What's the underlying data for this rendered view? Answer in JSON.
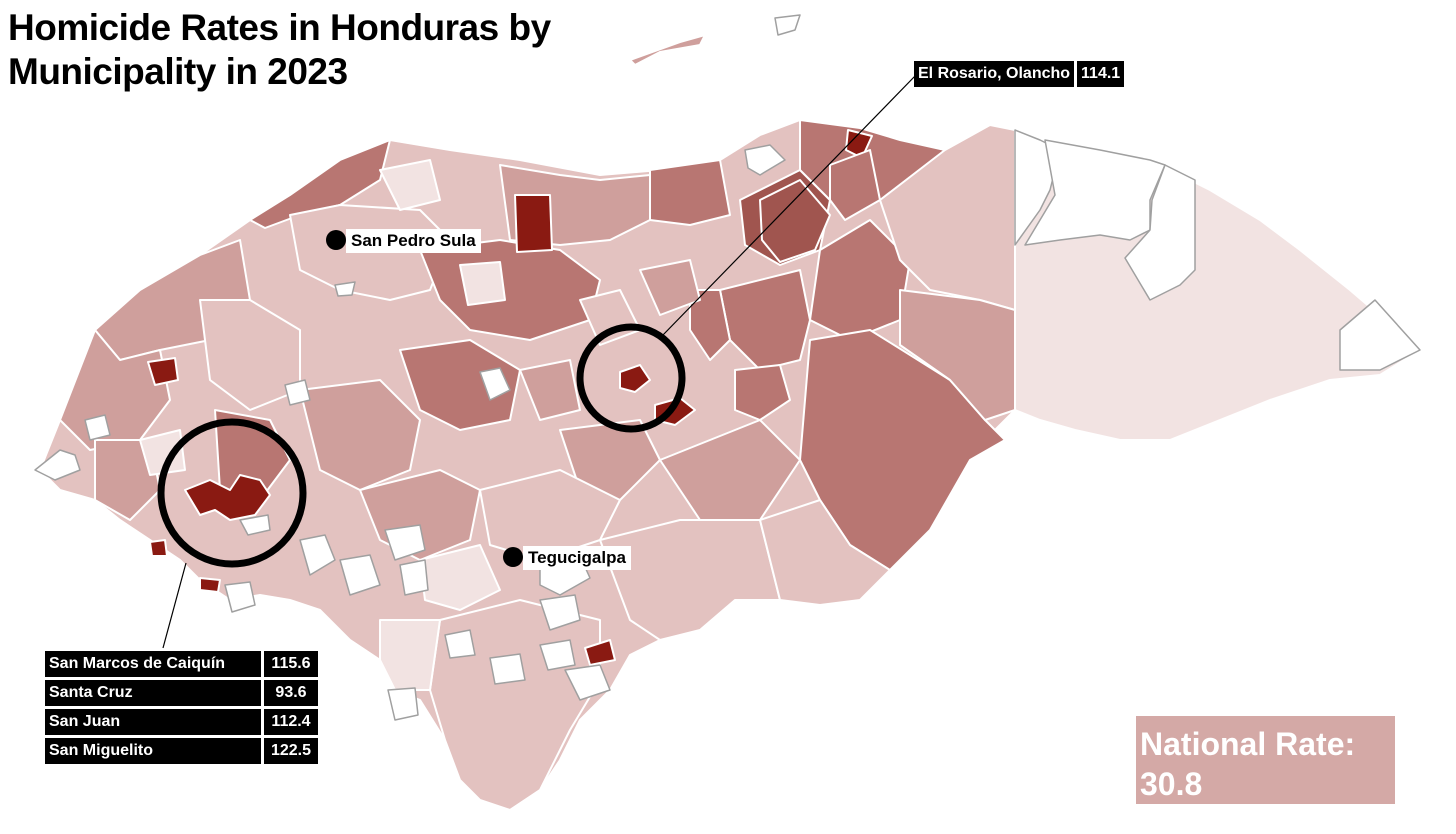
{
  "title": "Homicide Rates in Honduras by Municipality in 2023",
  "cities": [
    {
      "name": "San Pedro Sula"
    },
    {
      "name": "Tegucigalpa"
    }
  ],
  "callout_north": {
    "name": "El Rosario, Olancho",
    "value": "114.1"
  },
  "callout_west": [
    {
      "name": "San Marcos de Caiquín",
      "value": "115.6"
    },
    {
      "name": "Santa Cruz",
      "value": "93.6"
    },
    {
      "name": "San Juan",
      "value": "112.4"
    },
    {
      "name": "San Miguelito",
      "value": "122.5"
    }
  ],
  "national_rate": {
    "label": "National Rate:",
    "value": "30.8"
  },
  "colors": {
    "no_data": "#ffffff",
    "very_low": "#f2e3e2",
    "low": "#e3c2c0",
    "medium": "#cf9f9c",
    "high": "#b87672",
    "very_high": "#a0554f",
    "extreme": "#8a1a12",
    "border": "#ffffff",
    "no_data_border": "#a0a0a0",
    "national_box": "#d4a9a6"
  }
}
